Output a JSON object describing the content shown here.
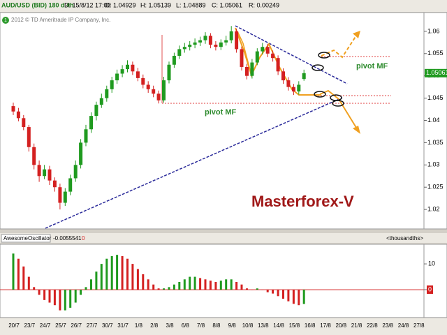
{
  "header": {
    "symbol": "AUD/USD (BID) 180 d 4h",
    "date": "D: 15/8/12 17:00",
    "open": "O: 1.04929",
    "high": "H: 1.05139",
    "low": "L: 1.04889",
    "close": "C: 1.05061",
    "range": "R: 0.00249",
    "copyright": "2012 © TD Ameritrade IP Company, Inc.",
    "badge": "1"
  },
  "chart_data": [
    {
      "type": "candlestick",
      "categories": [
        "20/7",
        "23/7",
        "24/7",
        "25/7",
        "26/7",
        "27/7",
        "30/7",
        "31/7",
        "1/8",
        "2/8",
        "3/8",
        "6/8",
        "7/8",
        "8/8",
        "9/8",
        "10/8",
        "13/8",
        "14/8",
        "15/8",
        "16/8",
        "17/8",
        "20/8",
        "21/8",
        "22/8",
        "23/8",
        "24/8",
        "27/8"
      ],
      "open": [
        1.0432,
        1.042,
        1.0405,
        1.0385,
        1.034,
        1.03,
        1.0275,
        1.029,
        1.0265,
        1.025,
        1.0215,
        1.024,
        1.027,
        1.03,
        1.035,
        1.038,
        1.041,
        1.0435,
        1.045,
        1.047,
        1.049,
        1.0505,
        1.0515,
        1.0525,
        1.051,
        1.0495,
        1.048,
        1.047,
        1.046,
        1.0445,
        1.049,
        1.0525,
        1.0545,
        1.056,
        1.0565,
        1.057,
        1.0575,
        1.058,
        1.059,
        1.057,
        1.0565,
        1.0575,
        1.058,
        1.06,
        1.056,
        1.052,
        1.05,
        1.053,
        1.0555,
        1.0565,
        1.055,
        1.054,
        1.051,
        1.049,
        1.0475,
        1.0465,
        1.04929
      ],
      "high": [
        1.044,
        1.0428,
        1.0412,
        1.039,
        1.0348,
        1.031,
        1.03,
        1.0298,
        1.0272,
        1.0258,
        1.0248,
        1.0278,
        1.031,
        1.0358,
        1.039,
        1.0418,
        1.0442,
        1.046,
        1.0478,
        1.0498,
        1.0514,
        1.0524,
        1.0535,
        1.0532,
        1.0518,
        1.0503,
        1.0488,
        1.0478,
        1.0467,
        1.0498,
        1.0532,
        1.0552,
        1.0568,
        1.0574,
        1.0578,
        1.0584,
        1.0588,
        1.0598,
        1.0596,
        1.0578,
        1.0582,
        1.059,
        1.0612,
        1.0606,
        1.0566,
        1.0527,
        1.0538,
        1.0562,
        1.0574,
        1.0572,
        1.0557,
        1.0546,
        1.0517,
        1.0497,
        1.0482,
        1.0488,
        1.05139
      ],
      "low": [
        1.0412,
        1.0398,
        1.0378,
        1.033,
        1.029,
        1.0262,
        1.0268,
        1.0255,
        1.024,
        1.02,
        1.0208,
        1.0232,
        1.0262,
        1.0292,
        1.0342,
        1.0372,
        1.04,
        1.0428,
        1.0442,
        1.0462,
        1.0482,
        1.0497,
        1.0508,
        1.0502,
        1.0488,
        1.0472,
        1.0462,
        1.0452,
        1.0438,
        1.044,
        1.0483,
        1.0518,
        1.0538,
        1.0552,
        1.0557,
        1.0562,
        1.0567,
        1.0572,
        1.0562,
        1.0557,
        1.0558,
        1.0568,
        1.0573,
        1.0552,
        1.0512,
        1.0492,
        1.0494,
        1.0524,
        1.0548,
        1.0542,
        1.0532,
        1.0502,
        1.0482,
        1.0467,
        1.0457,
        1.0458,
        1.04889
      ],
      "close": [
        1.042,
        1.0405,
        1.0385,
        1.034,
        1.03,
        1.0275,
        1.029,
        1.0265,
        1.025,
        1.0215,
        1.024,
        1.027,
        1.03,
        1.035,
        1.038,
        1.041,
        1.0435,
        1.045,
        1.047,
        1.049,
        1.0505,
        1.0515,
        1.0525,
        1.051,
        1.0495,
        1.048,
        1.047,
        1.046,
        1.0445,
        1.049,
        1.0525,
        1.0545,
        1.056,
        1.0565,
        1.057,
        1.0575,
        1.058,
        1.059,
        1.057,
        1.0565,
        1.0575,
        1.058,
        1.06,
        1.056,
        1.052,
        1.05,
        1.053,
        1.0555,
        1.0565,
        1.055,
        1.054,
        1.051,
        1.049,
        1.0475,
        1.0465,
        1.048,
        1.05061
      ],
      "up_color": "#1f9a1f",
      "down_color": "#d42020",
      "ylim": [
        1.0161,
        1.0639
      ],
      "yticks": [
        1.02,
        1.025,
        1.03,
        1.035,
        1.04,
        1.045,
        1.05,
        1.055,
        1.06
      ],
      "last_price": 1.05061,
      "annotations": [
        "pivot MF",
        "pivot MF",
        "Masterforex-V"
      ]
    },
    {
      "type": "bar",
      "title": "AwesomeOscillator",
      "value_text": "-0.0055541",
      "status": "0",
      "unit": "<thousandths>",
      "values": [
        14,
        12,
        9,
        5,
        1,
        -2,
        -4,
        -5,
        -6,
        -8,
        -8,
        -7,
        -5,
        -2,
        1,
        4,
        7,
        10,
        12,
        13,
        13.5,
        13,
        12,
        10,
        8,
        6,
        4,
        2,
        0.5,
        0.5,
        1,
        2,
        3,
        4,
        5,
        5,
        4.5,
        4,
        3.5,
        3,
        3.5,
        4,
        4,
        3,
        2,
        0.5,
        0,
        0.5,
        0,
        -1,
        -1.5,
        -2.5,
        -3.5,
        -4.5,
        -5.5,
        -6,
        -5.5541
      ],
      "up_color": "#1f9a1f",
      "down_color": "#d42020",
      "ylim": [
        -10.8,
        17.6
      ],
      "yticks": [
        0,
        10
      ]
    }
  ]
}
